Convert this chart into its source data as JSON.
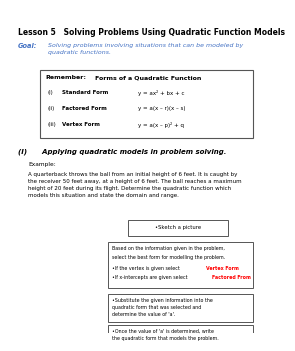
{
  "title": "Lesson 5   Solving Problems Using Quadratic Function Models",
  "goal_label": "Goal:",
  "goal_text": "Solving problems involving situations that can be modeled by\nquadratic functions.",
  "remember_title": "Remember:",
  "remember_title2": "Forms of a Quadratic Function",
  "forms": [
    {
      "label": "(i)",
      "name": "Standard Form",
      "formula": "y = ax² + bx + c"
    },
    {
      "label": "(ii)",
      "name": "Factored Form",
      "formula": "y = a(x – r)(x – s)"
    },
    {
      "label": "(iii)",
      "name": "Vertex Form",
      "formula": "y = a(x – p)² + q"
    }
  ],
  "section_title": "(I)      Applying quadratic models in problem solving.",
  "example_label": "Example:",
  "example_text": "A quarterback throws the ball from an initial height of 6 feet. It is caught by\nthe receiver 50 feet away, at a height of 6 feet. The ball reaches a maximum\nheight of 20 feet during its flight. Determine the quadratic function which\nmodels this situation and state the domain and range.",
  "box1_text": "•Sketch a picture",
  "box2_line1": "Based on the information given in the problem,",
  "box2_line2": "select the best form for modelling the problem.",
  "box2_line3_prefix": "•If the vertex is given select ",
  "box2_line3_red": "Vertex Form",
  "box2_line4_prefix": "•If x-intercepts are given select ",
  "box2_line4_red": "Factored From",
  "box3_text": "•Substitute the given information into the\nquadratic form that was selected and\ndetermine the value of 'a'.",
  "box4_text": "•Once the value of 'a' is determined, write\nthe quadratic form that models the problem.",
  "background": "#ffffff",
  "title_color": "#000000",
  "goal_label_color": "#4472c4",
  "goal_text_color": "#4472c4",
  "red_color": "#ff0000"
}
